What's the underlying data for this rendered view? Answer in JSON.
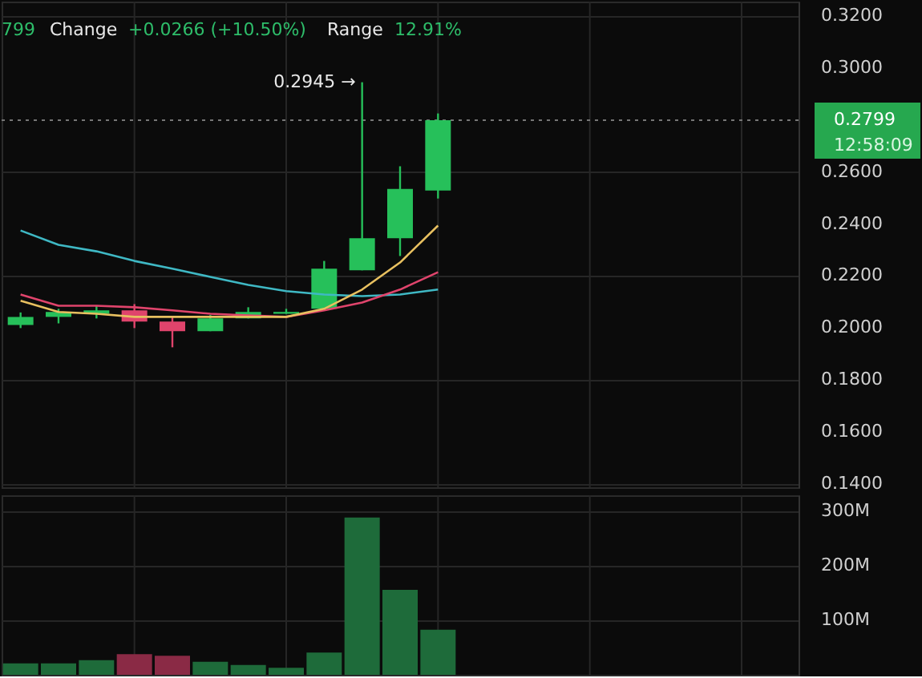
{
  "chart_data": [
    {
      "type": "candlestick",
      "categories": [
        null,
        null,
        null,
        null,
        null,
        null,
        null,
        null,
        null,
        null,
        null,
        null,
        null,
        null,
        null,
        null,
        null,
        null,
        null,
        null,
        null
      ],
      "ohlc": [
        [
          0.2012,
          0.206,
          0.2,
          0.2043
        ],
        [
          0.2043,
          0.2074,
          0.2018,
          0.2062
        ],
        [
          0.2055,
          0.2086,
          0.2037,
          0.2068
        ],
        [
          0.2068,
          0.2092,
          0.2,
          0.2025
        ],
        [
          0.2025,
          0.2043,
          0.1926,
          0.1988
        ],
        [
          0.1988,
          0.205,
          0.1988,
          0.2037
        ],
        [
          0.2037,
          0.208,
          0.2037,
          0.2062
        ],
        [
          0.2055,
          0.2074,
          0.2055,
          0.2062
        ],
        [
          0.2074,
          0.2258,
          0.2074,
          0.2228
        ],
        [
          0.2222,
          0.2945,
          0.2222,
          0.2345
        ],
        [
          0.2345,
          0.2622,
          0.2277,
          0.2535
        ],
        [
          0.2529,
          0.2825,
          0.2498,
          0.2799
        ],
        null,
        null,
        null,
        null,
        null,
        null,
        null,
        null,
        null
      ],
      "colors": [
        "#26c05a",
        "#26c05a",
        "#26c05a",
        "#e0446c",
        "#e0446c",
        "#26c05a",
        "#26c05a",
        "#26c05a",
        "#26c05a",
        "#26c05a",
        "#26c05a",
        "#26c05a",
        null,
        null,
        null,
        null,
        null,
        null,
        null,
        null,
        null
      ],
      "series": [
        {
          "type": "line",
          "color": "#3fb8c4",
          "values": [
            0.2375,
            0.232,
            0.2295,
            0.2258,
            0.2228,
            0.2197,
            0.2166,
            0.2142,
            0.2129,
            0.2123,
            0.2129,
            0.2148,
            null,
            null,
            null,
            null,
            null,
            null,
            null,
            null,
            null
          ]
        },
        {
          "type": "line",
          "color": "#e0446c",
          "values": [
            0.2129,
            0.2086,
            0.2086,
            0.208,
            0.2068,
            0.2055,
            0.2049,
            0.2043,
            0.2068,
            0.2098,
            0.2148,
            0.2215,
            null,
            null,
            null,
            null,
            null,
            null,
            null,
            null,
            null
          ]
        },
        {
          "type": "line",
          "color": "#e8c060",
          "values": [
            0.2105,
            0.2062,
            0.2055,
            0.2043,
            0.2043,
            0.2043,
            0.2043,
            0.2043,
            0.2074,
            0.2148,
            0.2252,
            0.2394,
            null,
            null,
            null,
            null,
            null,
            null,
            null,
            null,
            null
          ]
        }
      ],
      "ylim": [
        0.1388,
        0.3255
      ],
      "yticks": [
        {
          "value": 0.14,
          "label": "0.1400"
        },
        {
          "value": 0.16,
          "label": "0.1600"
        },
        {
          "value": 0.18,
          "label": "0.1800"
        },
        {
          "value": 0.2,
          "label": "0.2000"
        },
        {
          "value": 0.22,
          "label": "0.2200"
        },
        {
          "value": 0.24,
          "label": "0.2400"
        },
        {
          "value": 0.26,
          "label": "0.2600"
        },
        {
          "value": 0.3,
          "label": "0.3000"
        },
        {
          "value": 0.32,
          "label": "0.3200"
        }
      ],
      "ref_lines": [
        {
          "axis": "y",
          "value": 0.2799,
          "label": "0.2799",
          "line_style": "dotted",
          "color": "#777777"
        }
      ],
      "annotations": [
        "799",
        "Change",
        "+0.0266 (+10.50%)",
        "Range",
        "12.91%",
        "0.2945 →",
        "12:58:09"
      ],
      "grid": true,
      "tick_labels": "y"
    },
    {
      "type": "bar",
      "categories": [
        null,
        null,
        null,
        null,
        null,
        null,
        null,
        null,
        null,
        null,
        null,
        null,
        null,
        null,
        null,
        null,
        null,
        null,
        null,
        null,
        null
      ],
      "values": [
        21,
        21,
        27,
        38,
        35,
        24,
        18,
        13,
        41,
        289,
        156,
        83,
        null,
        null,
        null,
        null,
        null,
        null,
        null,
        null,
        null
      ],
      "colors": [
        "#1e6b3a",
        "#1e6b3a",
        "#1e6b3a",
        "#8a2a45",
        "#8a2a45",
        "#1e6b3a",
        "#1e6b3a",
        "#1e6b3a",
        "#1e6b3a",
        "#1e6b3a",
        "#1e6b3a",
        "#1e6b3a",
        null,
        null,
        null,
        null,
        null,
        null,
        null,
        null,
        null
      ],
      "ylim": [
        0,
        330
      ],
      "yticks": [
        {
          "value": 100,
          "label": "100M"
        },
        {
          "value": 200,
          "label": "200M"
        },
        {
          "value": 300,
          "label": "300M"
        }
      ],
      "grid": true,
      "tick_labels": "y"
    }
  ]
}
